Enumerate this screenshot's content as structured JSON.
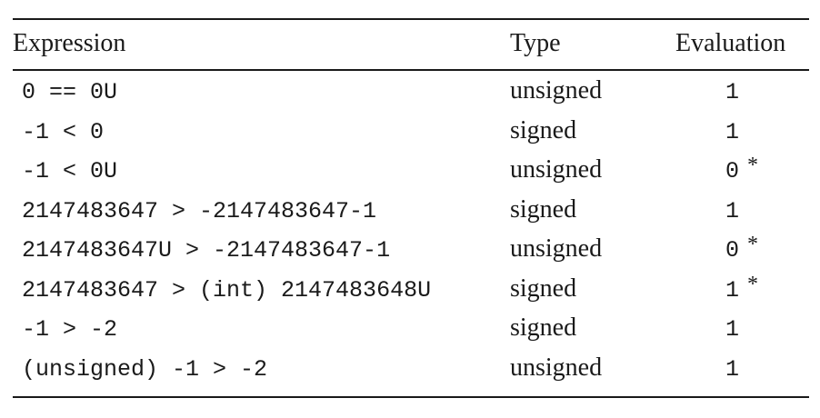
{
  "table": {
    "headers": {
      "expression": "Expression",
      "type": "Type",
      "evaluation": "Evaluation"
    },
    "rows": [
      {
        "expression": "0 == 0U",
        "type": "unsigned",
        "evaluation": "1",
        "mark": ""
      },
      {
        "expression": "-1 < 0",
        "type": "signed",
        "evaluation": "1",
        "mark": ""
      },
      {
        "expression": "-1 < 0U",
        "type": "unsigned",
        "evaluation": "0",
        "mark": "*"
      },
      {
        "expression": "2147483647 > -2147483647-1",
        "type": "signed",
        "evaluation": "1",
        "mark": ""
      },
      {
        "expression": "2147483647U > -2147483647-1",
        "type": "unsigned",
        "evaluation": "0",
        "mark": "*"
      },
      {
        "expression": "2147483647 > (int) 2147483648U",
        "type": "signed",
        "evaluation": "1",
        "mark": "*"
      },
      {
        "expression": "-1 > -2",
        "type": "signed",
        "evaluation": "1",
        "mark": ""
      },
      {
        "expression": "(unsigned) -1 > -2",
        "type": "unsigned",
        "evaluation": "1",
        "mark": ""
      }
    ]
  }
}
